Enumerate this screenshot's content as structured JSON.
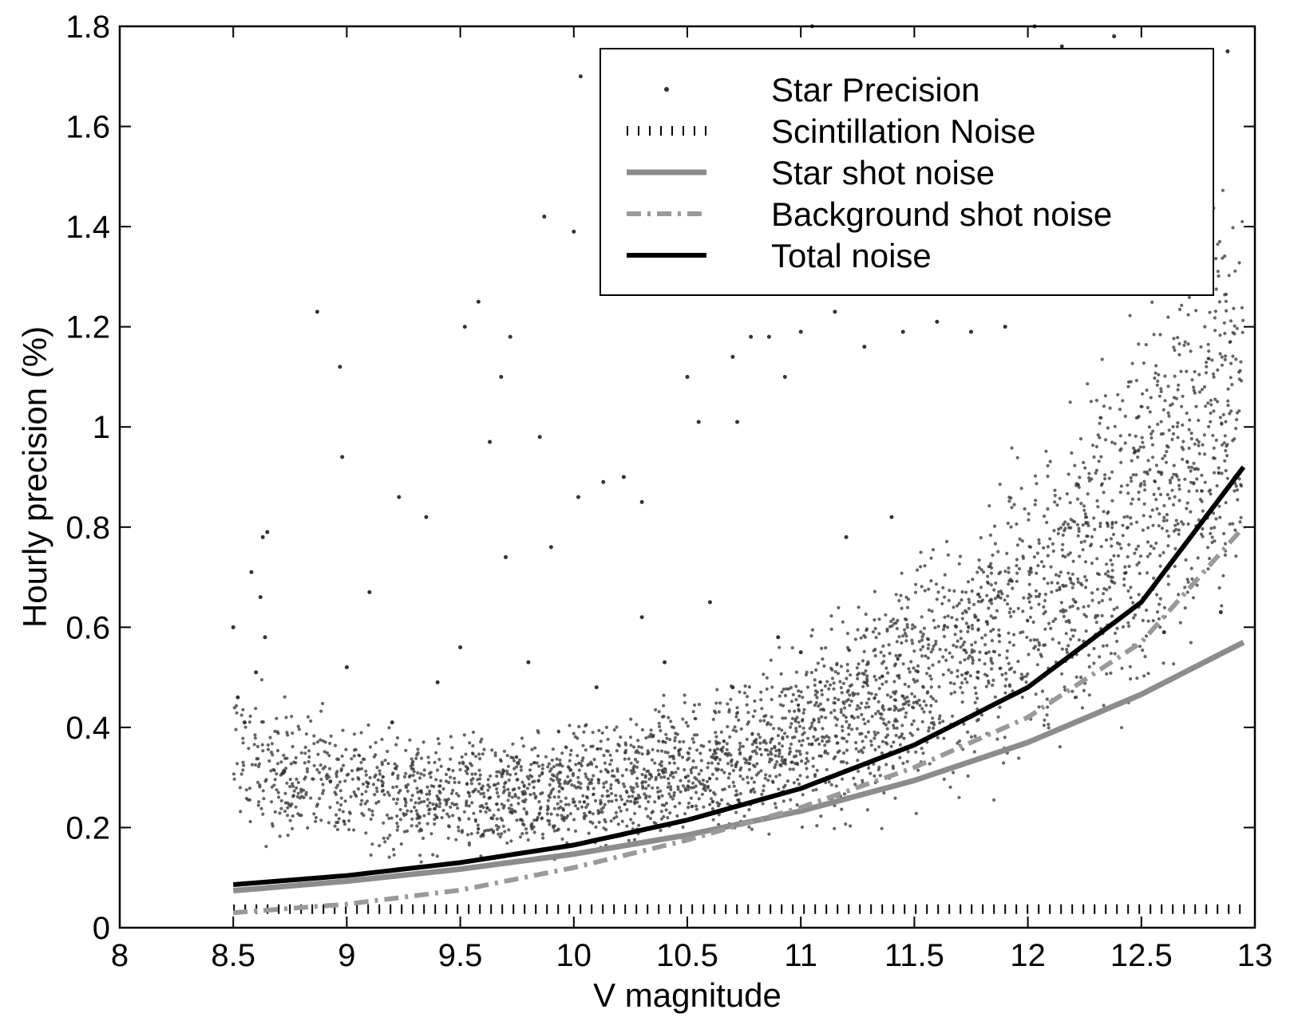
{
  "chart_data": {
    "type": "line",
    "xlabel": "V magnitude",
    "ylabel": "Hourly precision (%)",
    "xlim": [
      8,
      13
    ],
    "ylim": [
      0,
      1.8
    ],
    "xticks": [
      8,
      8.5,
      9,
      9.5,
      10,
      10.5,
      11,
      11.5,
      12,
      12.5,
      13
    ],
    "xtick_labels": [
      "8",
      "8.5",
      "9",
      "9.5",
      "10",
      "10.5",
      "11",
      "11.5",
      "12",
      "12.5",
      "13"
    ],
    "yticks": [
      0,
      0.2,
      0.4,
      0.6,
      0.8,
      1,
      1.2,
      1.4,
      1.6,
      1.8
    ],
    "ytick_labels": [
      "0",
      "0.2",
      "0.4",
      "0.6",
      "0.8",
      "1",
      "1.2",
      "1.4",
      "1.6",
      "1.8"
    ],
    "legend_position": "top-right",
    "grid": false,
    "series": [
      {
        "name": "Star Precision",
        "style": "points",
        "color": "#333333",
        "points": [
          [
            8.5,
            0.6
          ],
          [
            8.52,
            0.46
          ],
          [
            8.55,
            0.41
          ],
          [
            8.58,
            0.71
          ],
          [
            8.62,
            0.66
          ],
          [
            8.63,
            0.78
          ],
          [
            8.65,
            0.79
          ],
          [
            8.64,
            0.58
          ],
          [
            8.6,
            0.51
          ],
          [
            8.87,
            1.23
          ],
          [
            8.97,
            1.12
          ],
          [
            8.98,
            0.94
          ],
          [
            9.1,
            0.67
          ],
          [
            9.23,
            0.86
          ],
          [
            9.35,
            0.82
          ],
          [
            9.52,
            1.2
          ],
          [
            9.58,
            1.25
          ],
          [
            9.63,
            0.97
          ],
          [
            9.68,
            1.1
          ],
          [
            9.72,
            1.18
          ],
          [
            9.85,
            0.98
          ],
          [
            9.87,
            1.42
          ],
          [
            10.0,
            1.39
          ],
          [
            10.03,
            1.7
          ],
          [
            10.02,
            0.86
          ],
          [
            10.13,
            0.89
          ],
          [
            10.22,
            0.9
          ],
          [
            10.3,
            0.85
          ],
          [
            10.5,
            1.1
          ],
          [
            10.55,
            1.01
          ],
          [
            10.7,
            1.14
          ],
          [
            10.72,
            1.01
          ],
          [
            10.78,
            1.18
          ],
          [
            10.86,
            1.18
          ],
          [
            10.93,
            1.1
          ],
          [
            11.0,
            1.19
          ],
          [
            11.05,
            1.8
          ],
          [
            11.15,
            1.23
          ],
          [
            11.28,
            1.16
          ],
          [
            11.45,
            1.19
          ],
          [
            11.6,
            1.21
          ],
          [
            11.75,
            1.19
          ],
          [
            11.9,
            1.2
          ],
          [
            12.03,
            1.8
          ],
          [
            12.15,
            1.76
          ],
          [
            12.38,
            1.78
          ],
          [
            12.5,
            1.75
          ],
          [
            12.72,
            1.7
          ],
          [
            12.88,
            1.75
          ],
          [
            9.4,
            0.49
          ],
          [
            9.7,
            0.74
          ],
          [
            9.9,
            0.76
          ],
          [
            10.3,
            0.62
          ],
          [
            10.6,
            0.65
          ],
          [
            10.9,
            0.58
          ],
          [
            11.2,
            0.78
          ],
          [
            11.4,
            0.82
          ],
          [
            9.0,
            0.52
          ],
          [
            9.2,
            0.41
          ],
          [
            9.5,
            0.56
          ],
          [
            9.8,
            0.53
          ],
          [
            10.1,
            0.48
          ],
          [
            10.4,
            0.53
          ],
          [
            10.7,
            0.48
          ],
          [
            11.0,
            0.55
          ],
          [
            12.6,
            0.59
          ],
          [
            12.85,
            0.63
          ]
        ],
        "band": {
          "x": [
            8.5,
            8.75,
            9.0,
            9.25,
            9.5,
            9.75,
            10.0,
            10.25,
            10.5,
            10.75,
            11.0,
            11.25,
            11.5,
            11.75,
            12.0,
            12.25,
            12.5,
            12.75,
            12.95
          ],
          "low": [
            0.25,
            0.21,
            0.19,
            0.18,
            0.18,
            0.18,
            0.19,
            0.2,
            0.22,
            0.24,
            0.27,
            0.3,
            0.34,
            0.39,
            0.45,
            0.52,
            0.6,
            0.7,
            0.8
          ],
          "high": [
            0.45,
            0.4,
            0.37,
            0.35,
            0.35,
            0.35,
            0.36,
            0.38,
            0.41,
            0.45,
            0.5,
            0.57,
            0.65,
            0.74,
            0.85,
            0.97,
            1.1,
            1.25,
            1.35
          ]
        }
      },
      {
        "name": "Scintillation Noise",
        "style": "dotted",
        "color": "#000000",
        "x": [
          8.5,
          12.95
        ],
        "y": [
          0.037,
          0.037
        ]
      },
      {
        "name": "Star shot noise",
        "style": "thick-gray",
        "color": "#8c8c8c",
        "x": [
          8.5,
          9.0,
          9.5,
          10.0,
          10.5,
          11.0,
          11.5,
          12.0,
          12.5,
          12.95
        ],
        "y": [
          0.074,
          0.093,
          0.117,
          0.147,
          0.185,
          0.233,
          0.294,
          0.37,
          0.466,
          0.57
        ]
      },
      {
        "name": "Background shot noise",
        "style": "dash-dot-gray",
        "color": "#9a9a9a",
        "x": [
          8.5,
          9.0,
          9.5,
          10.0,
          10.5,
          11.0,
          11.5,
          12.0,
          12.5,
          12.95
        ],
        "y": [
          0.03,
          0.047,
          0.075,
          0.12,
          0.175,
          0.24,
          0.32,
          0.42,
          0.57,
          0.8
        ]
      },
      {
        "name": "Total noise",
        "style": "thick-black",
        "color": "#000000",
        "x": [
          8.5,
          9.0,
          9.5,
          10.0,
          10.5,
          11.0,
          11.5,
          12.0,
          12.5,
          12.95
        ],
        "y": [
          0.086,
          0.104,
          0.13,
          0.165,
          0.215,
          0.278,
          0.365,
          0.48,
          0.65,
          0.92
        ]
      }
    ]
  }
}
